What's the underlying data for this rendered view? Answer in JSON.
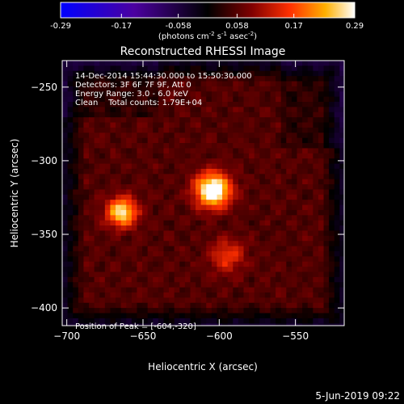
{
  "colorbar": {
    "ticks": [
      "-0.29",
      "-0.17",
      "-0.058",
      "0.058",
      "0.17",
      "0.29"
    ],
    "tick_values": [
      -0.29,
      -0.17,
      -0.058,
      0.058,
      0.17,
      0.29
    ],
    "range": [
      -0.29,
      0.29
    ],
    "units_main": "(photons cm",
    "units_exp1": "-2",
    "units_mid1": " s",
    "units_exp2": "-1",
    "units_mid2": " asec",
    "units_exp3": "-2",
    "units_end": ")"
  },
  "chart_data": {
    "type": "heatmap",
    "title": "Reconstructed RHESSI Image",
    "xlabel": "Heliocentric X (arcsec)",
    "ylabel": "Heliocentric Y (arcsec)",
    "xlim": [
      -703,
      -518
    ],
    "ylim": [
      -412,
      -232
    ],
    "xticks": [
      -700,
      -650,
      -600,
      -550
    ],
    "xtick_labels": [
      "−700",
      "−650",
      "−600",
      "−550"
    ],
    "yticks": [
      -250,
      -300,
      -350,
      -400
    ],
    "ytick_labels": [
      "−250",
      "−300",
      "−350",
      "−400"
    ],
    "sources": [
      {
        "x": -604,
        "y": -320,
        "peak": 0.29,
        "sigma": 8
      },
      {
        "x": -664,
        "y": -335,
        "peak": 0.22,
        "sigma": 7
      },
      {
        "x": -595,
        "y": -365,
        "peak": 0.1,
        "sigma": 8
      }
    ],
    "colormap": [
      "#0000ff",
      "#4b00a0",
      "#000000",
      "#800000",
      "#ff3000",
      "#ffb000",
      "#ffffff"
    ]
  },
  "annotations": {
    "line1": "14-Dec-2014 15:44:30.000 to 15:50:30.000",
    "line2": "Detectors: 3F 6F 7F 9F, Att 0",
    "line3": "Energy Range: 3.0 - 6.0 keV",
    "line4": "Clean    Total counts: 1.79E+04",
    "peak": "Position of Peak = [-604,-320]"
  },
  "timestamp": "5-Jun-2019 09:22"
}
